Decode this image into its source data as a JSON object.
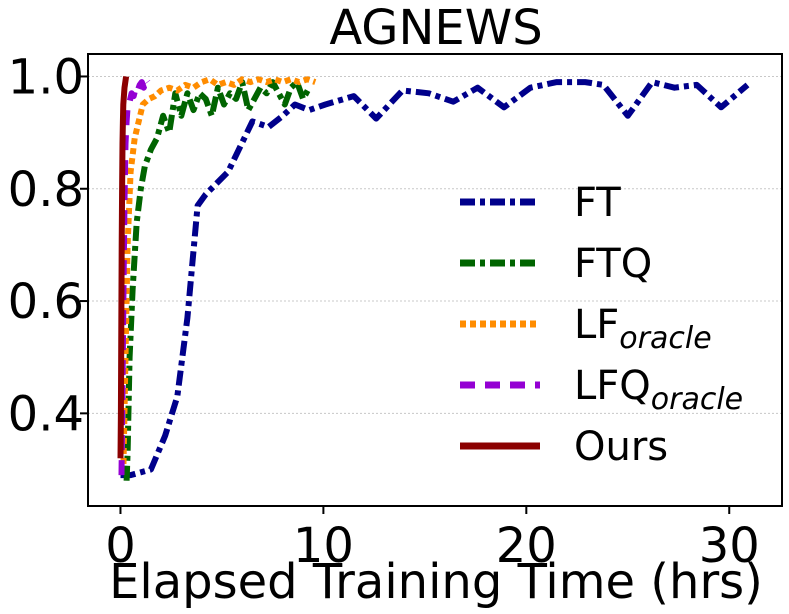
{
  "chart_data": {
    "type": "line",
    "title": "AGNEWS",
    "xlabel": "Elapsed Training Time (hrs)",
    "ylabel": "",
    "xlim": [
      -1.6,
      32.6
    ],
    "ylim": [
      0.235,
      1.04
    ],
    "xticks": [
      0,
      10,
      20,
      30
    ],
    "xtick_labels": [
      "0",
      "10",
      "20",
      "30"
    ],
    "yticks": [
      0.4,
      0.6,
      0.8,
      1.0
    ],
    "ytick_labels": [
      "0.4",
      "0.6",
      "0.8",
      "1.0"
    ],
    "grid": true,
    "legend_position": "lower-right",
    "series": [
      {
        "name": "FT",
        "legend_main": "FT",
        "legend_sub": "",
        "color": "#00008b",
        "dash": "dashdot",
        "x": [
          0,
          0.5,
          1.5,
          2.2,
          2.8,
          3.3,
          3.8,
          4.2,
          5.3,
          6.5,
          7.3,
          8.0,
          8.6,
          9.3,
          10.1,
          11.5,
          12.6,
          13.9,
          15.2,
          16.4,
          17.6,
          18.9,
          20.2,
          21.5,
          22.9,
          23.8,
          25.0,
          26.2,
          27.3,
          28.4,
          29.6,
          30.9
        ],
        "y": [
          0.29,
          0.29,
          0.3,
          0.36,
          0.43,
          0.57,
          0.77,
          0.79,
          0.83,
          0.92,
          0.91,
          0.93,
          0.95,
          0.94,
          0.95,
          0.965,
          0.925,
          0.975,
          0.97,
          0.955,
          0.98,
          0.945,
          0.98,
          0.99,
          0.99,
          0.985,
          0.93,
          0.99,
          0.98,
          0.985,
          0.945,
          0.985
        ]
      },
      {
        "name": "FTQ",
        "legend_main": "FTQ",
        "legend_sub": "",
        "color": "#006400",
        "dash": "dashdot",
        "x": [
          0.3,
          0.35,
          0.45,
          0.6,
          0.8,
          1.0,
          1.2,
          1.5,
          1.8,
          2.1,
          2.4,
          2.7,
          3.0,
          3.3,
          3.6,
          3.9,
          4.2,
          4.5,
          4.8,
          5.1,
          5.4,
          5.7,
          6.0,
          6.3,
          6.6,
          6.9,
          7.2,
          7.5,
          7.8,
          8.1,
          8.4,
          8.7,
          9.0,
          9.3
        ],
        "y": [
          0.28,
          0.33,
          0.5,
          0.62,
          0.74,
          0.8,
          0.84,
          0.87,
          0.89,
          0.93,
          0.9,
          0.97,
          0.93,
          0.97,
          0.94,
          0.97,
          0.96,
          0.93,
          0.98,
          0.95,
          0.97,
          0.96,
          0.99,
          0.94,
          0.96,
          0.98,
          0.97,
          0.99,
          0.97,
          0.95,
          0.98,
          0.99,
          0.96,
          0.98
        ]
      },
      {
        "name": "LForacle",
        "legend_main": "LF",
        "legend_sub": "oracle",
        "color": "#ff8c00",
        "dash": "dotted",
        "x": [
          0.15,
          0.25,
          0.35,
          0.5,
          0.7,
          0.9,
          1.1,
          1.4,
          1.7,
          2.0,
          2.4,
          2.8,
          3.2,
          3.6,
          4.0,
          4.4,
          4.8,
          5.2,
          5.6,
          6.0,
          6.4,
          6.8,
          7.2,
          7.6,
          8.0,
          8.4,
          8.8,
          9.2,
          9.6
        ],
        "y": [
          0.31,
          0.5,
          0.7,
          0.83,
          0.89,
          0.92,
          0.95,
          0.96,
          0.965,
          0.975,
          0.98,
          0.975,
          0.985,
          0.98,
          0.99,
          0.995,
          0.985,
          0.99,
          0.985,
          0.995,
          0.99,
          0.995,
          0.99,
          0.995,
          0.99,
          0.995,
          0.99,
          0.995,
          0.99
        ]
      },
      {
        "name": "LFQoracle",
        "legend_main": "LFQ",
        "legend_sub": "oracle",
        "color": "#9400d3",
        "dash": "dashed",
        "x": [
          0.05,
          0.1,
          0.15,
          0.2,
          0.25,
          0.3,
          0.35,
          0.45,
          0.55,
          0.65,
          0.75,
          0.85,
          0.95,
          1.05,
          1.15,
          1.25,
          1.35
        ],
        "y": [
          0.29,
          0.45,
          0.62,
          0.78,
          0.88,
          0.92,
          0.945,
          0.955,
          0.97,
          0.965,
          0.98,
          0.975,
          0.985,
          0.99,
          0.98,
          0.995,
          0.99
        ]
      },
      {
        "name": "Ours",
        "legend_main": "Ours",
        "legend_sub": "",
        "color": "#8b0000",
        "dash": "solid",
        "x": [
          0.0,
          0.02,
          0.04,
          0.06,
          0.08,
          0.1,
          0.12,
          0.14,
          0.16,
          0.18,
          0.2,
          0.22,
          0.24,
          0.26,
          0.28
        ],
        "y": [
          0.32,
          0.4,
          0.55,
          0.7,
          0.8,
          0.88,
          0.92,
          0.95,
          0.96,
          0.97,
          0.98,
          0.985,
          0.99,
          0.995,
          1.0
        ]
      }
    ]
  }
}
